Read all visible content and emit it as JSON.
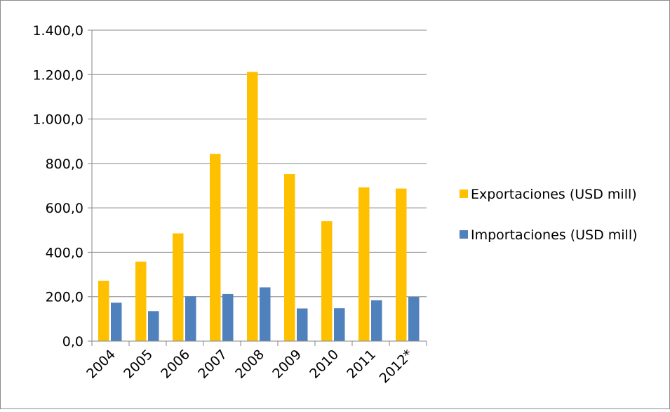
{
  "chart_data": {
    "type": "bar",
    "title": "",
    "xlabel": "",
    "ylabel": "",
    "categories": [
      "2004",
      "2005",
      "2006",
      "2007",
      "2008",
      "2009",
      "2010",
      "2011",
      "2012*"
    ],
    "series": [
      {
        "name": "Exportaciones (USD mill)",
        "color": "#FFC000",
        "values": [
          272,
          358,
          485,
          843,
          1212,
          752,
          540,
          692,
          687
        ]
      },
      {
        "name": "Importaciones (USD mill)",
        "color": "#4F81BD",
        "values": [
          173,
          135,
          202,
          212,
          242,
          147,
          148,
          184,
          199
        ]
      }
    ],
    "ylim": [
      0,
      1400
    ],
    "yticks": [
      0,
      200,
      400,
      600,
      800,
      1000,
      1200,
      1400
    ],
    "ytick_labels": [
      "0,0",
      "200,0",
      "400,0",
      "600,0",
      "800,0",
      "1.000,0",
      "1.200,0",
      "1.400,0"
    ],
    "grid": true,
    "legend_position": "right"
  }
}
